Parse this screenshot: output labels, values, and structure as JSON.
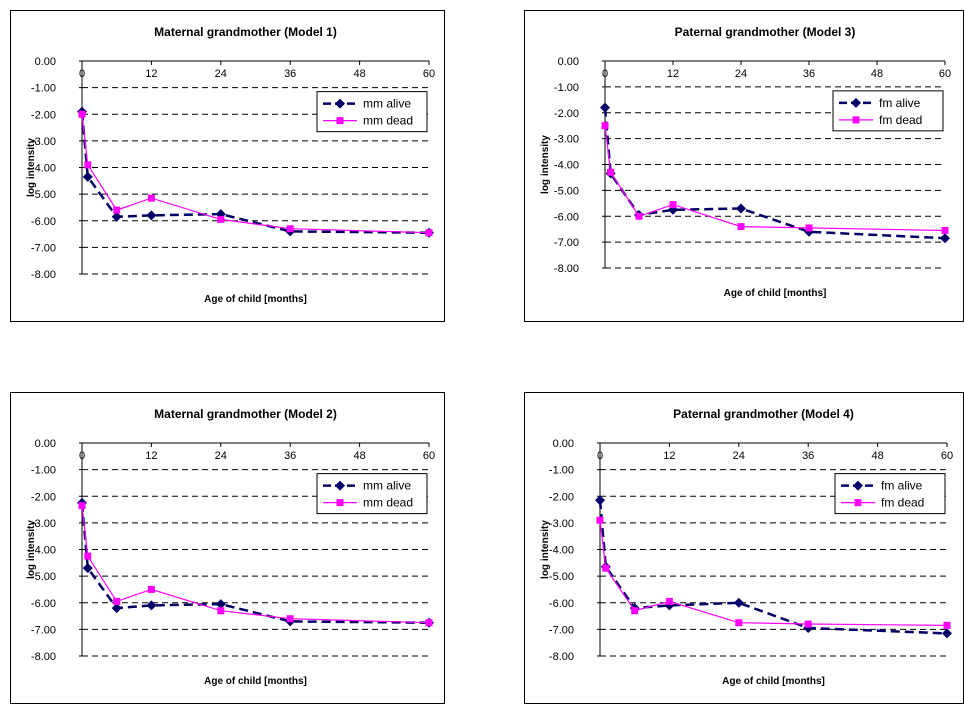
{
  "chart_data": [
    {
      "type": "line",
      "title": "Maternal grandmother (Model 1)",
      "xlabel": "Age of child [months]",
      "ylabel": "log intensity",
      "xlim": [
        0,
        60
      ],
      "ylim": [
        -8,
        0
      ],
      "x_ticks": [
        "0",
        "12",
        "24",
        "36",
        "48",
        "60"
      ],
      "y_ticks": [
        "0.00",
        "-1.00",
        "-2.00",
        "-3.00",
        "-4.00",
        "-5.00",
        "-6.00",
        "-7.00",
        "-8.00"
      ],
      "grid": "horizontal dashed",
      "legend": "top-right",
      "x": [
        0,
        1,
        6,
        12,
        24,
        36,
        60
      ],
      "series": [
        {
          "name": "mm alive",
          "color": "#000066",
          "values": [
            -1.9,
            -4.35,
            -5.85,
            -5.8,
            -5.75,
            -6.4,
            -6.45
          ]
        },
        {
          "name": "mm dead",
          "color": "#ff00ff",
          "values": [
            -2.0,
            -3.9,
            -5.6,
            -5.15,
            -5.95,
            -6.3,
            -6.45
          ]
        }
      ]
    },
    {
      "type": "line",
      "title": "Paternal grandmother (Model 3)",
      "xlabel": "Age of child [months]",
      "ylabel": "log intensity",
      "xlim": [
        0,
        60
      ],
      "ylim": [
        -8,
        0
      ],
      "x_ticks": [
        "0",
        "12",
        "24",
        "36",
        "48",
        "60"
      ],
      "y_ticks": [
        "0.00",
        "-1.00",
        "-2.00",
        "-3.00",
        "-4.00",
        "-5.00",
        "-6.00",
        "-7.00",
        "-8.00"
      ],
      "grid": "horizontal dashed",
      "legend": "top-right",
      "x": [
        0,
        1,
        6,
        12,
        24,
        36,
        60
      ],
      "series": [
        {
          "name": "fm alive",
          "color": "#000066",
          "values": [
            -1.8,
            -4.35,
            -5.95,
            -5.75,
            -5.7,
            -6.6,
            -6.85
          ]
        },
        {
          "name": "fm dead",
          "color": "#ff00ff",
          "values": [
            -2.5,
            -4.3,
            -6.0,
            -5.55,
            -6.4,
            -6.45,
            -6.55
          ]
        }
      ]
    },
    {
      "type": "line",
      "title": "Maternal grandmother (Model 2)",
      "xlabel": "Age of child [months]",
      "ylabel": "log intensity",
      "xlim": [
        0,
        60
      ],
      "ylim": [
        -8,
        0
      ],
      "x_ticks": [
        "0",
        "12",
        "24",
        "36",
        "48",
        "60"
      ],
      "y_ticks": [
        "0.00",
        "-1.00",
        "-2.00",
        "-3.00",
        "-4.00",
        "-5.00",
        "-6.00",
        "-7.00",
        "-8.00"
      ],
      "grid": "horizontal dashed",
      "legend": "top-right",
      "x": [
        0,
        1,
        6,
        12,
        24,
        36,
        60
      ],
      "series": [
        {
          "name": "mm alive",
          "color": "#000066",
          "values": [
            -2.25,
            -4.7,
            -6.2,
            -6.1,
            -6.05,
            -6.7,
            -6.75
          ]
        },
        {
          "name": "mm dead",
          "color": "#ff00ff",
          "values": [
            -2.35,
            -4.25,
            -5.95,
            -5.5,
            -6.3,
            -6.6,
            -6.75
          ]
        }
      ]
    },
    {
      "type": "line",
      "title": "Paternal grandmother (Model 4)",
      "xlabel": "Age of child [months]",
      "ylabel": "log intensity",
      "xlim": [
        0,
        60
      ],
      "ylim": [
        -8,
        0
      ],
      "x_ticks": [
        "0",
        "12",
        "24",
        "36",
        "48",
        "60"
      ],
      "y_ticks": [
        "0.00",
        "-1.00",
        "-2.00",
        "-3.00",
        "-4.00",
        "-5.00",
        "-6.00",
        "-7.00",
        "-8.00"
      ],
      "grid": "horizontal dashed",
      "legend": "top-right",
      "x": [
        0,
        1,
        6,
        12,
        24,
        36,
        60
      ],
      "series": [
        {
          "name": "fm alive",
          "color": "#000066",
          "values": [
            -2.15,
            -4.65,
            -6.2,
            -6.1,
            -6.0,
            -6.95,
            -7.15
          ]
        },
        {
          "name": "fm dead",
          "color": "#ff00ff",
          "values": [
            -2.9,
            -4.7,
            -6.3,
            -5.95,
            -6.75,
            -6.8,
            -6.85
          ]
        }
      ]
    }
  ]
}
